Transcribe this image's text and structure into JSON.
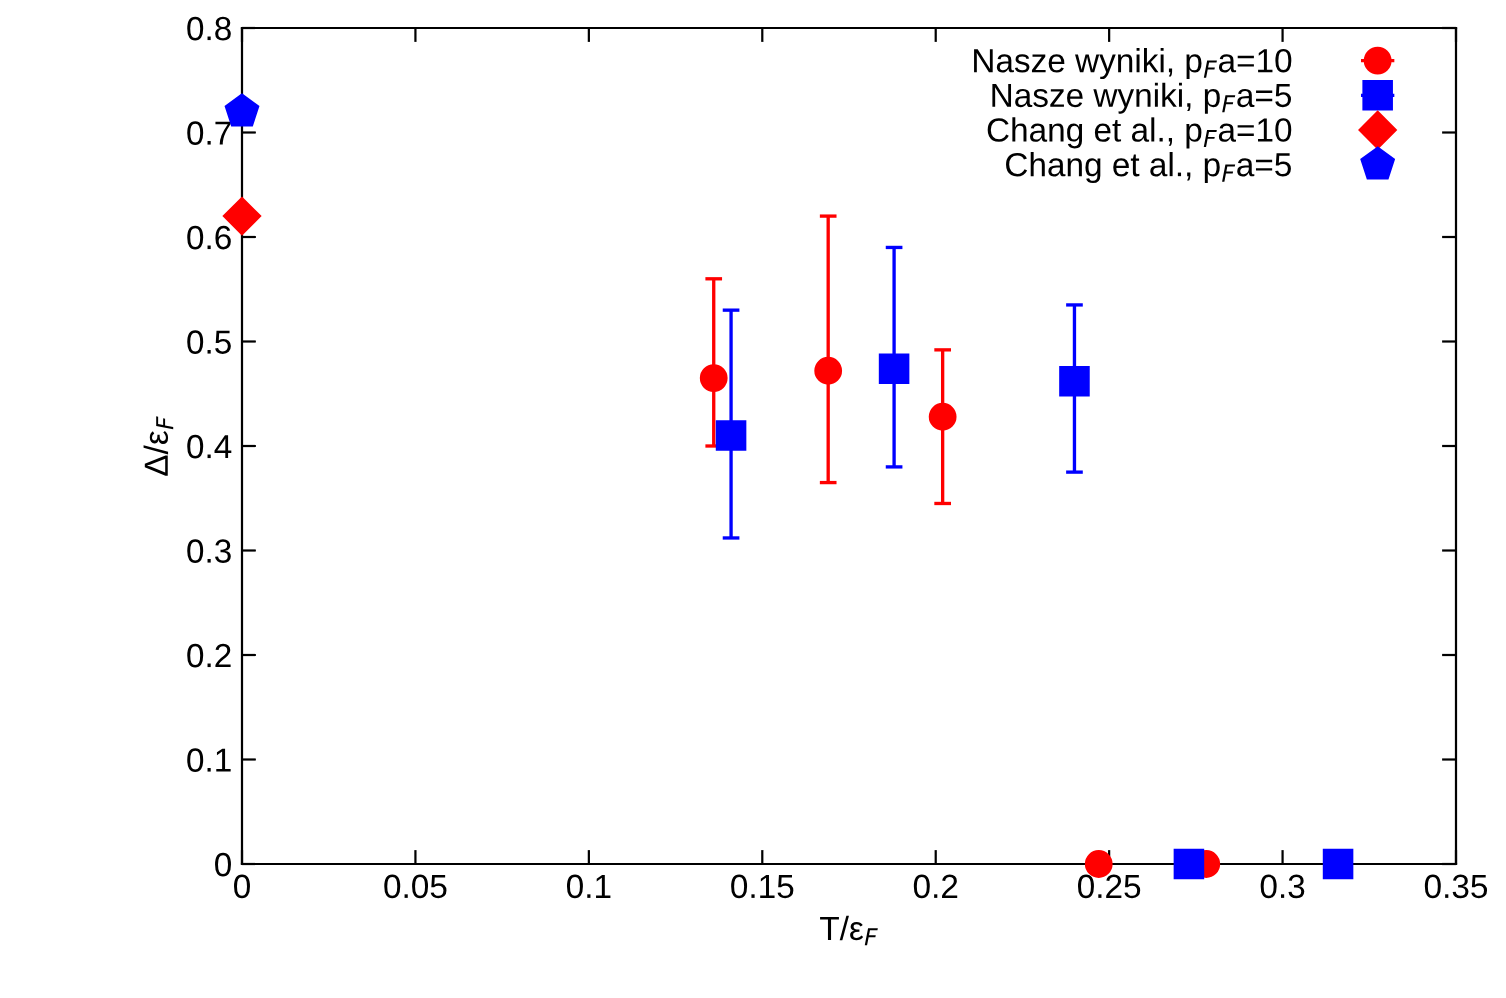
{
  "chart_data": {
    "type": "scatter",
    "xlabel": "T/ε$_{F}$",
    "ylabel": "Δ/ε$_{F}$",
    "xlim": [
      0,
      0.35
    ],
    "ylim": [
      0,
      0.8
    ],
    "xticks": [
      0,
      0.05,
      0.1,
      0.15,
      0.2,
      0.25,
      0.3,
      0.35
    ],
    "yticks": [
      0,
      0.1,
      0.2,
      0.3,
      0.4,
      0.5,
      0.6,
      0.7,
      0.8
    ],
    "grid": false,
    "legend": "top right",
    "series": [
      {
        "name": "Nasze wyniki, p$_{F}$a=10",
        "color": "#ff0000",
        "marker": "circle",
        "x": [
          0.136,
          0.169,
          0.202,
          0.247,
          0.278
        ],
        "values": [
          0.465,
          0.472,
          0.428,
          0,
          0
        ],
        "errors": [
          [
            0.4,
            0.56
          ],
          [
            0.365,
            0.62
          ],
          [
            0.345,
            0.492
          ],
          null,
          null
        ]
      },
      {
        "name": "Nasze wyniki, p$_{F}$a=5",
        "color": "#0000ff",
        "marker": "square",
        "x": [
          0.141,
          0.188,
          0.24,
          0.273,
          0.316
        ],
        "values": [
          0.41,
          0.474,
          0.462,
          0,
          0
        ],
        "errors": [
          [
            0.312,
            0.53
          ],
          [
            0.38,
            0.59
          ],
          [
            0.375,
            0.535
          ],
          null,
          null
        ]
      },
      {
        "name": "Chang et al., p$_{F}$a=10",
        "color": "#ff0000",
        "marker": "diamond",
        "x": [
          0
        ],
        "values": [
          0.62
        ]
      },
      {
        "name": "Chang et al., p$_{F}$a=5",
        "color": "#0000ff",
        "x": [
          0
        ],
        "values": [
          0.72
        ]
      }
    ]
  }
}
